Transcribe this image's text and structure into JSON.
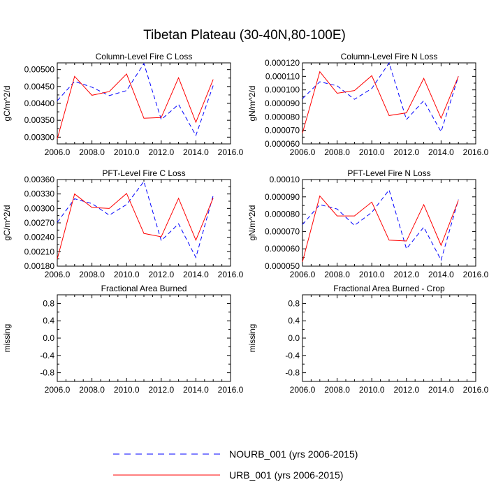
{
  "title": "Tibetan Plateau (30-40N,80-100E)",
  "colors": {
    "urb": "#ff0000",
    "nourb": "#0000ff",
    "axis": "#000000"
  },
  "legend": {
    "nourb_label": "NOURB_001 (yrs 2006-2015)",
    "urb_label": "URB_001 (yrs 2006-2015)"
  },
  "chart_data": [
    {
      "type": "line",
      "title": "Column-Level Fire C Loss",
      "ylabel": "gC/m^2/d",
      "xlim": [
        2006,
        2016
      ],
      "ylim": [
        0.0028,
        0.0052
      ],
      "xticks": [
        "2006.0",
        "2008.0",
        "2010.0",
        "2012.0",
        "2014.0",
        "2016.0"
      ],
      "yticks": [
        0.003,
        0.0035,
        0.004,
        0.0045,
        0.005
      ],
      "yticklabels": [
        "0.00300",
        "0.00350",
        "0.00400",
        "0.00450",
        "0.00500"
      ],
      "x": [
        2006,
        2007,
        2008,
        2009,
        2010,
        2011,
        2012,
        2013,
        2014,
        2015
      ],
      "series": [
        {
          "name": "NOURB_001 (yrs 2006-2015)",
          "style": "dashed",
          "color": "#0000ff",
          "values": [
            0.00408,
            0.00465,
            0.00448,
            0.00423,
            0.00438,
            0.00518,
            0.00352,
            0.00397,
            0.00305,
            0.00453
          ]
        },
        {
          "name": "URB_001 (yrs 2006-2015)",
          "style": "solid",
          "color": "#ff0000",
          "values": [
            0.00295,
            0.0048,
            0.00424,
            0.00435,
            0.00487,
            0.00356,
            0.00358,
            0.00476,
            0.00344,
            0.00471
          ]
        }
      ]
    },
    {
      "type": "line",
      "title": "Column-Level Fire N Loss",
      "ylabel": "gN/m^2/d",
      "xlim": [
        2006,
        2016
      ],
      "ylim": [
        6e-05,
        0.00012
      ],
      "xticks": [
        "2006.0",
        "2008.0",
        "2010.0",
        "2012.0",
        "2014.0",
        "2016.0"
      ],
      "yticks": [
        6e-05,
        7e-05,
        8e-05,
        9e-05,
        0.0001,
        0.00011,
        0.00012
      ],
      "yticklabels": [
        "0.000060",
        "0.000070",
        "0.000080",
        "0.000090",
        "0.000100",
        "0.000110",
        "0.000120"
      ],
      "x": [
        2006,
        2007,
        2008,
        2009,
        2010,
        2011,
        2012,
        2013,
        2014,
        2015
      ],
      "series": [
        {
          "name": "NOURB_001 (yrs 2006-2015)",
          "style": "dashed",
          "color": "#0000ff",
          "values": [
            9.35e-05,
            0.000106,
            0.000103,
            9.3e-05,
            0.000101,
            0.00012,
            7.8e-05,
            9.2e-05,
            6.9e-05,
            0.00011
          ]
        },
        {
          "name": "URB_001 (yrs 2006-2015)",
          "style": "solid",
          "color": "#ff0000",
          "values": [
            6.8e-05,
            0.0001135,
            9.75e-05,
            9.95e-05,
            0.0001105,
            8.1e-05,
            8.3e-05,
            0.0001085,
            7.9e-05,
            0.00011
          ]
        }
      ]
    },
    {
      "type": "line",
      "title": "PFT-Level Fire C Loss",
      "ylabel": "gC/m^2/d",
      "xlim": [
        2006,
        2016
      ],
      "ylim": [
        0.0018,
        0.0036
      ],
      "xticks": [
        "2006.0",
        "2008.0",
        "2010.0",
        "2012.0",
        "2014.0",
        "2016.0"
      ],
      "yticks": [
        0.0018,
        0.0021,
        0.0024,
        0.0027,
        0.003,
        0.0033,
        0.0036
      ],
      "yticklabels": [
        "0.00180",
        "0.00210",
        "0.00240",
        "0.00270",
        "0.00300",
        "0.00330",
        "0.00360"
      ],
      "x": [
        2006,
        2007,
        2008,
        2009,
        2010,
        2011,
        2012,
        2013,
        2014,
        2015
      ],
      "series": [
        {
          "name": "NOURB_001 (yrs 2006-2015)",
          "style": "dashed",
          "color": "#0000ff",
          "values": [
            0.00271,
            0.0032,
            0.0031,
            0.00286,
            0.00308,
            0.00356,
            0.00233,
            0.00268,
            0.00198,
            0.00327
          ]
        },
        {
          "name": "URB_001 (yrs 2006-2015)",
          "style": "solid",
          "color": "#ff0000",
          "values": [
            0.00195,
            0.0033,
            0.00302,
            0.003,
            0.00331,
            0.00248,
            0.00241,
            0.00321,
            0.00234,
            0.00322
          ]
        }
      ]
    },
    {
      "type": "line",
      "title": "PFT-Level Fire N Loss",
      "ylabel": "gN/m^2/d",
      "xlim": [
        2006,
        2016
      ],
      "ylim": [
        5e-05,
        0.0001
      ],
      "xticks": [
        "2006.0",
        "2008.0",
        "2010.0",
        "2012.0",
        "2014.0",
        "2016.0"
      ],
      "yticks": [
        5e-05,
        6e-05,
        7e-05,
        8e-05,
        9e-05,
        0.0001
      ],
      "yticklabels": [
        "0.000050",
        "0.000060",
        "0.000070",
        "0.000080",
        "0.000090",
        "0.00010"
      ],
      "x": [
        2006,
        2007,
        2008,
        2009,
        2010,
        2011,
        2012,
        2013,
        2014,
        2015
      ],
      "series": [
        {
          "name": "NOURB_001 (yrs 2006-2015)",
          "style": "dashed",
          "color": "#0000ff",
          "values": [
            7.4e-05,
            8.55e-05,
            8.3e-05,
            7.35e-05,
            8.1e-05,
            9.4e-05,
            6e-05,
            7.25e-05,
            5.35e-05,
            8.85e-05
          ]
        },
        {
          "name": "URB_001 (yrs 2006-2015)",
          "style": "solid",
          "color": "#ff0000",
          "values": [
            5.25e-05,
            9.05e-05,
            7.9e-05,
            7.9e-05,
            8.7e-05,
            6.5e-05,
            6.45e-05,
            8.55e-05,
            6.2e-05,
            8.8e-05
          ]
        }
      ]
    },
    {
      "type": "line",
      "title": "Fractional Area Burned",
      "ylabel": "missing",
      "xlim": [
        2006,
        2016
      ],
      "ylim": [
        -1,
        1
      ],
      "xticks": [
        "2006.0",
        "2008.0",
        "2010.0",
        "2012.0",
        "2014.0",
        "2016.0"
      ],
      "yticks": [
        -0.8,
        -0.4,
        0.0,
        0.4,
        0.8
      ],
      "yticklabels": [
        "-0.8",
        "-0.4",
        "0.0",
        "0.4",
        "0.8"
      ],
      "x": [],
      "series": []
    },
    {
      "type": "line",
      "title": "Fractional Area Burned - Crop",
      "ylabel": "missing",
      "xlim": [
        2006,
        2016
      ],
      "ylim": [
        -1,
        1
      ],
      "xticks": [
        "2006.0",
        "2008.0",
        "2010.0",
        "2012.0",
        "2014.0",
        "2016.0"
      ],
      "yticks": [
        -0.8,
        -0.4,
        0.0,
        0.4,
        0.8
      ],
      "yticklabels": [
        "-0.8",
        "-0.4",
        "0.0",
        "0.4",
        "0.8"
      ],
      "x": [],
      "series": []
    }
  ]
}
